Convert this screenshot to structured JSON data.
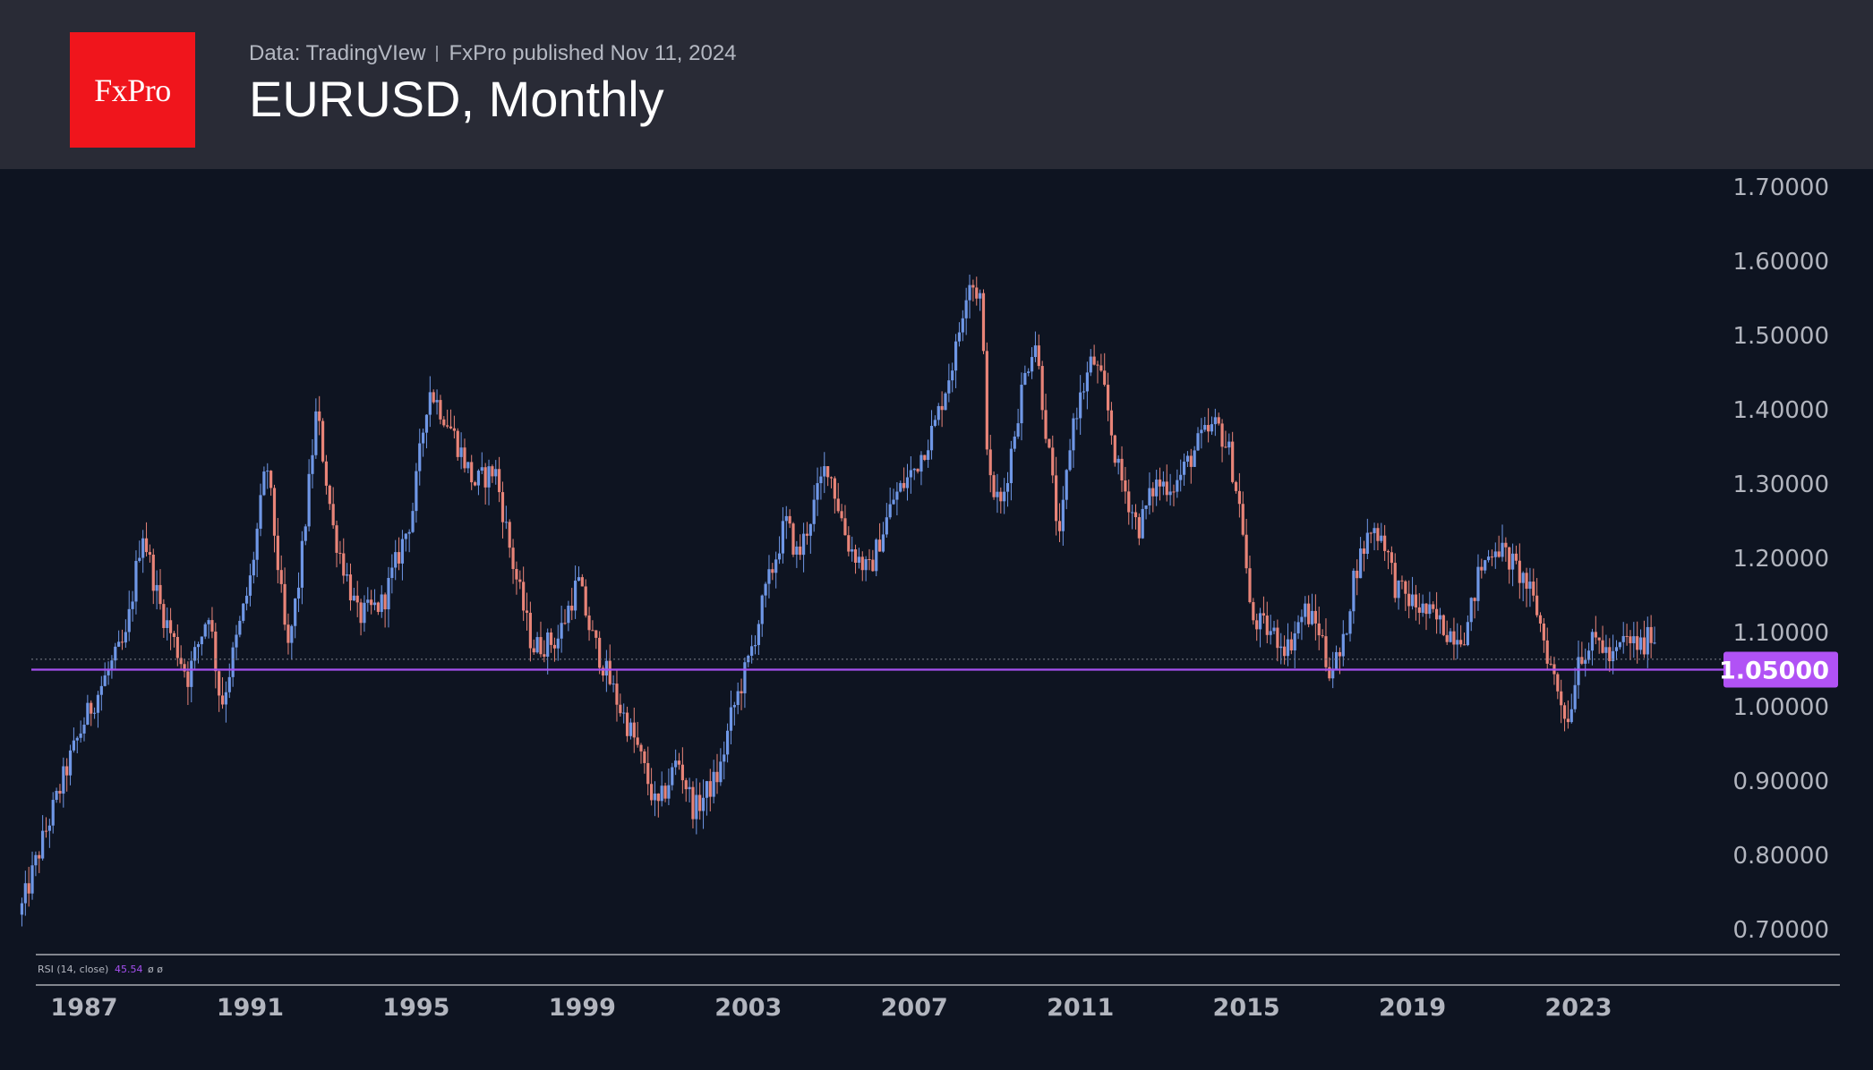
{
  "header": {
    "logo_text": "FxPro",
    "data_source": "Data: TradingVIew",
    "published": "FxPro published Nov 11, 2024",
    "title": "EURUSD, Monthly"
  },
  "colors": {
    "background": "#0e1421",
    "header_bg": "#292b36",
    "logo_bg": "#f0151c",
    "candle_up": "#6f97e6",
    "candle_down": "#e88478",
    "level_line": "#a650f0",
    "level_badge": "#b152f5"
  },
  "rsi_label": {
    "name": "RSI (14, close)",
    "value": "45.54",
    "extra": "ø ø"
  },
  "chart_data": {
    "type": "candlestick",
    "symbol": "EURUSD",
    "timeframe": "Monthly",
    "x_tick_labels": [
      "1987",
      "1991",
      "1995",
      "1999",
      "2003",
      "2007",
      "2011",
      "2015",
      "2019",
      "2023"
    ],
    "x_ticks": [
      1987,
      1991,
      1995,
      1999,
      2003,
      2007,
      2011,
      2015,
      2019,
      2023
    ],
    "xlim": [
      1985.5,
      2028.2
    ],
    "y_tick_labels": [
      "1.70000",
      "1.60000",
      "1.50000",
      "1.40000",
      "1.30000",
      "1.20000",
      "1.10000",
      "1.00000",
      "0.90000",
      "0.80000",
      "0.70000"
    ],
    "y_ticks": [
      1.7,
      1.6,
      1.5,
      1.4,
      1.3,
      1.2,
      1.1,
      1.0,
      0.9,
      0.8,
      0.7
    ],
    "ylim": [
      0.67,
      1.72
    ],
    "horizontal_level": {
      "value": 1.05,
      "label": "1.05000"
    },
    "last_close_dotted": 1.064,
    "key_points": [
      [
        1985.5,
        0.73
      ],
      [
        1986.0,
        0.82
      ],
      [
        1986.6,
        0.92
      ],
      [
        1987.0,
        0.98
      ],
      [
        1987.6,
        1.05
      ],
      [
        1988.0,
        1.09
      ],
      [
        1988.4,
        1.24
      ],
      [
        1988.8,
        1.14
      ],
      [
        1989.5,
        1.04
      ],
      [
        1990.0,
        1.13
      ],
      [
        1990.3,
        1.0
      ],
      [
        1991.0,
        1.17
      ],
      [
        1991.4,
        1.33
      ],
      [
        1991.9,
        1.07
      ],
      [
        1992.2,
        1.18
      ],
      [
        1992.6,
        1.4
      ],
      [
        1993.0,
        1.24
      ],
      [
        1993.6,
        1.12
      ],
      [
        1994.2,
        1.14
      ],
      [
        1994.9,
        1.26
      ],
      [
        1995.3,
        1.43
      ],
      [
        1995.8,
        1.38
      ],
      [
        1996.4,
        1.3
      ],
      [
        1996.9,
        1.32
      ],
      [
        1997.3,
        1.2
      ],
      [
        1997.8,
        1.08
      ],
      [
        1998.4,
        1.09
      ],
      [
        1998.9,
        1.17
      ],
      [
        1999.2,
        1.1
      ],
      [
        1999.9,
        1.0
      ],
      [
        2000.3,
        0.95
      ],
      [
        2000.8,
        0.86
      ],
      [
        2001.3,
        0.93
      ],
      [
        2001.7,
        0.86
      ],
      [
        2002.3,
        0.91
      ],
      [
        2002.6,
        0.99
      ],
      [
        2003.0,
        1.06
      ],
      [
        2003.4,
        1.15
      ],
      [
        2003.9,
        1.25
      ],
      [
        2004.2,
        1.2
      ],
      [
        2004.9,
        1.33
      ],
      [
        2005.4,
        1.22
      ],
      [
        2005.9,
        1.18
      ],
      [
        2006.5,
        1.28
      ],
      [
        2007.0,
        1.32
      ],
      [
        2007.5,
        1.38
      ],
      [
        2008.0,
        1.48
      ],
      [
        2008.3,
        1.58
      ],
      [
        2008.6,
        1.55
      ],
      [
        2008.8,
        1.3
      ],
      [
        2009.1,
        1.27
      ],
      [
        2009.6,
        1.43
      ],
      [
        2009.9,
        1.5
      ],
      [
        2010.2,
        1.36
      ],
      [
        2010.5,
        1.22
      ],
      [
        2010.8,
        1.38
      ],
      [
        2011.3,
        1.47
      ],
      [
        2011.6,
        1.42
      ],
      [
        2011.9,
        1.32
      ],
      [
        2012.4,
        1.24
      ],
      [
        2012.8,
        1.3
      ],
      [
        2013.3,
        1.3
      ],
      [
        2013.9,
        1.36
      ],
      [
        2014.3,
        1.38
      ],
      [
        2014.6,
        1.34
      ],
      [
        2014.9,
        1.25
      ],
      [
        2015.1,
        1.12
      ],
      [
        2015.6,
        1.1
      ],
      [
        2016.0,
        1.08
      ],
      [
        2016.4,
        1.13
      ],
      [
        2016.8,
        1.1
      ],
      [
        2016.95,
        1.05
      ],
      [
        2017.3,
        1.07
      ],
      [
        2017.6,
        1.18
      ],
      [
        2018.0,
        1.24
      ],
      [
        2018.3,
        1.23
      ],
      [
        2018.6,
        1.16
      ],
      [
        2019.0,
        1.14
      ],
      [
        2019.5,
        1.12
      ],
      [
        2019.9,
        1.1
      ],
      [
        2020.3,
        1.1
      ],
      [
        2020.6,
        1.18
      ],
      [
        2021.0,
        1.22
      ],
      [
        2021.3,
        1.2
      ],
      [
        2021.7,
        1.17
      ],
      [
        2022.0,
        1.13
      ],
      [
        2022.3,
        1.06
      ],
      [
        2022.75,
        0.98
      ],
      [
        2023.0,
        1.07
      ],
      [
        2023.5,
        1.09
      ],
      [
        2023.8,
        1.06
      ],
      [
        2024.1,
        1.09
      ],
      [
        2024.6,
        1.08
      ],
      [
        2024.8,
        1.11
      ],
      [
        2024.87,
        1.07
      ]
    ]
  }
}
